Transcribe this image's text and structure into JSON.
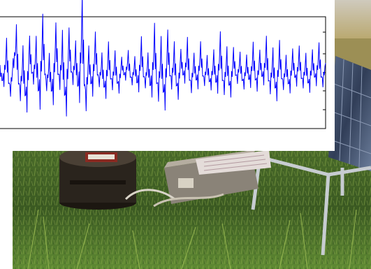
{
  "scene": {
    "description_label": "",
    "colors": {
      "sky": "#d9d4c8",
      "field_far": "#b8a66a",
      "grass_dark": "#2f4a1f",
      "grass_mid": "#4f7a2c",
      "grass_light": "#8fae4a",
      "metal": "#c7ccd1",
      "solar_panel": "#3d4b66",
      "sensor_body": "#2a241d",
      "trace": "#0000ff",
      "frame": "#000000"
    },
    "icons": [
      "solar-panel-icon",
      "seismometer-icon",
      "field-case-icon"
    ]
  },
  "chart_data": {
    "type": "line",
    "title": "",
    "xlabel": "",
    "ylabel": "",
    "series": [
      {
        "values": [
          0.05,
          -0.22,
          0.38,
          -0.41,
          0.12,
          0.55,
          -0.48,
          0.21,
          -0.66,
          0.47,
          -0.18,
          0.36,
          -0.59,
          0.74,
          -0.31,
          0.14,
          -0.52,
          0.63,
          -0.27,
          0.41,
          -0.72,
          0.58,
          -0.19,
          0.33,
          -0.46,
          0.92,
          -0.65,
          0.28,
          -0.38,
          0.51,
          -0.24,
          0.17,
          -0.43,
          0.36,
          -0.29,
          0.22,
          -0.35,
          0.19,
          -0.12,
          0.26,
          -0.21,
          0.15,
          -0.31,
          0.44,
          -0.26,
          0.18,
          -0.39,
          0.57,
          -0.48,
          0.35,
          -0.62,
          0.53,
          -0.27,
          0.32,
          -0.45,
          0.29,
          -0.16,
          0.41,
          -0.34,
          0.21,
          -0.26,
          0.38,
          -0.22,
          0.17,
          -0.29,
          0.24,
          -0.33,
          0.48,
          -0.37,
          0.26,
          -0.41,
          0.31,
          -0.18,
          0.22,
          -0.28,
          0.19,
          -0.24,
          0.35,
          -0.31,
          0.27,
          -0.19,
          0.42,
          -0.36,
          0.23,
          -0.47,
          0.38,
          -0.29,
          0.16,
          -0.34,
          0.28,
          -0.22,
          0.31,
          -0.26,
          0.19,
          -0.33,
          0.27,
          -0.21,
          0.36,
          -0.24,
          0.18
        ]
      }
    ],
    "ylim": [
      -1,
      1
    ],
    "grid": false,
    "tick_labels_shown": false
  }
}
